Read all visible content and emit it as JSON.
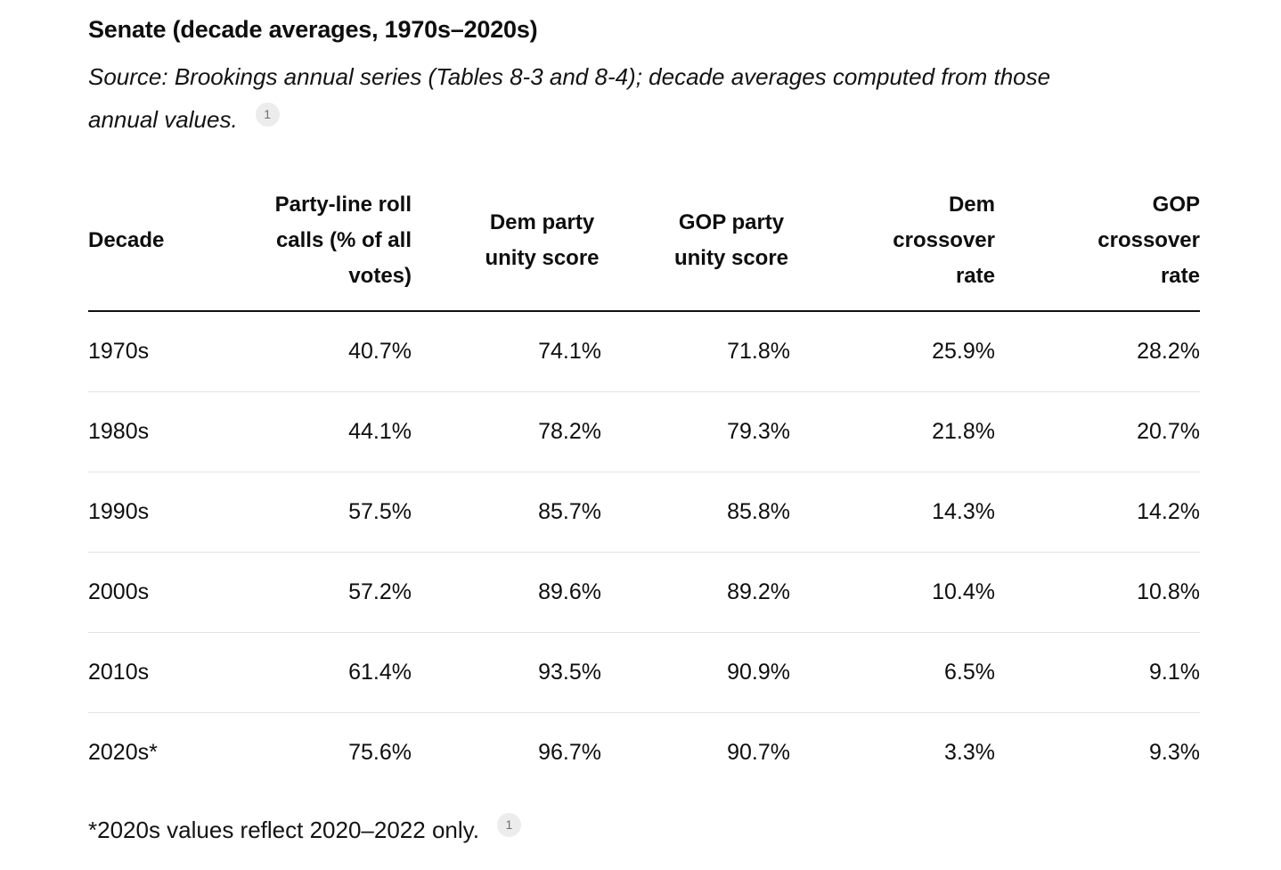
{
  "document": {
    "title": "Senate (decade averages, 1970s–2020s)",
    "source_note": "Source: Brookings annual series (Tables 8-3 and 8-4); decade averages computed from those\nannual values.",
    "source_citation_badge": "1",
    "footnote": "*2020s values reflect 2020–2022 only.",
    "footnote_citation_badge": "1"
  },
  "table": {
    "header_labels": [
      "Decade",
      "Party-line roll\ncalls (% of all\nvotes)",
      "Dem party\nunity score",
      "GOP party\nunity score",
      "Dem\ncrossover\nrate",
      "GOP\ncrossover\nrate"
    ]
  },
  "chart_data": {
    "type": "table",
    "title": "Senate (decade averages, 1970s–2020s)",
    "columns": [
      "Decade",
      "Party-line roll calls (% of all votes)",
      "Dem party unity score",
      "GOP party unity score",
      "Dem crossover rate",
      "GOP crossover rate"
    ],
    "rows": [
      [
        "1970s",
        "40.7%",
        "74.1%",
        "71.8%",
        "25.9%",
        "28.2%"
      ],
      [
        "1980s",
        "44.1%",
        "78.2%",
        "79.3%",
        "21.8%",
        "20.7%"
      ],
      [
        "1990s",
        "57.5%",
        "85.7%",
        "85.8%",
        "14.3%",
        "14.2%"
      ],
      [
        "2000s",
        "57.2%",
        "89.6%",
        "89.2%",
        "10.4%",
        "10.8%"
      ],
      [
        "2010s",
        "61.4%",
        "93.5%",
        "90.9%",
        "6.5%",
        "9.1%"
      ],
      [
        "2020s*",
        "75.6%",
        "96.7%",
        "90.7%",
        "3.3%",
        "9.3%"
      ]
    ]
  },
  "colors": {
    "text": "#0e0e0e",
    "row_divider": "#e3e3e3",
    "header_rule": "#111111",
    "citation_badge_bg": "#ececec",
    "citation_badge_text": "#707070"
  }
}
